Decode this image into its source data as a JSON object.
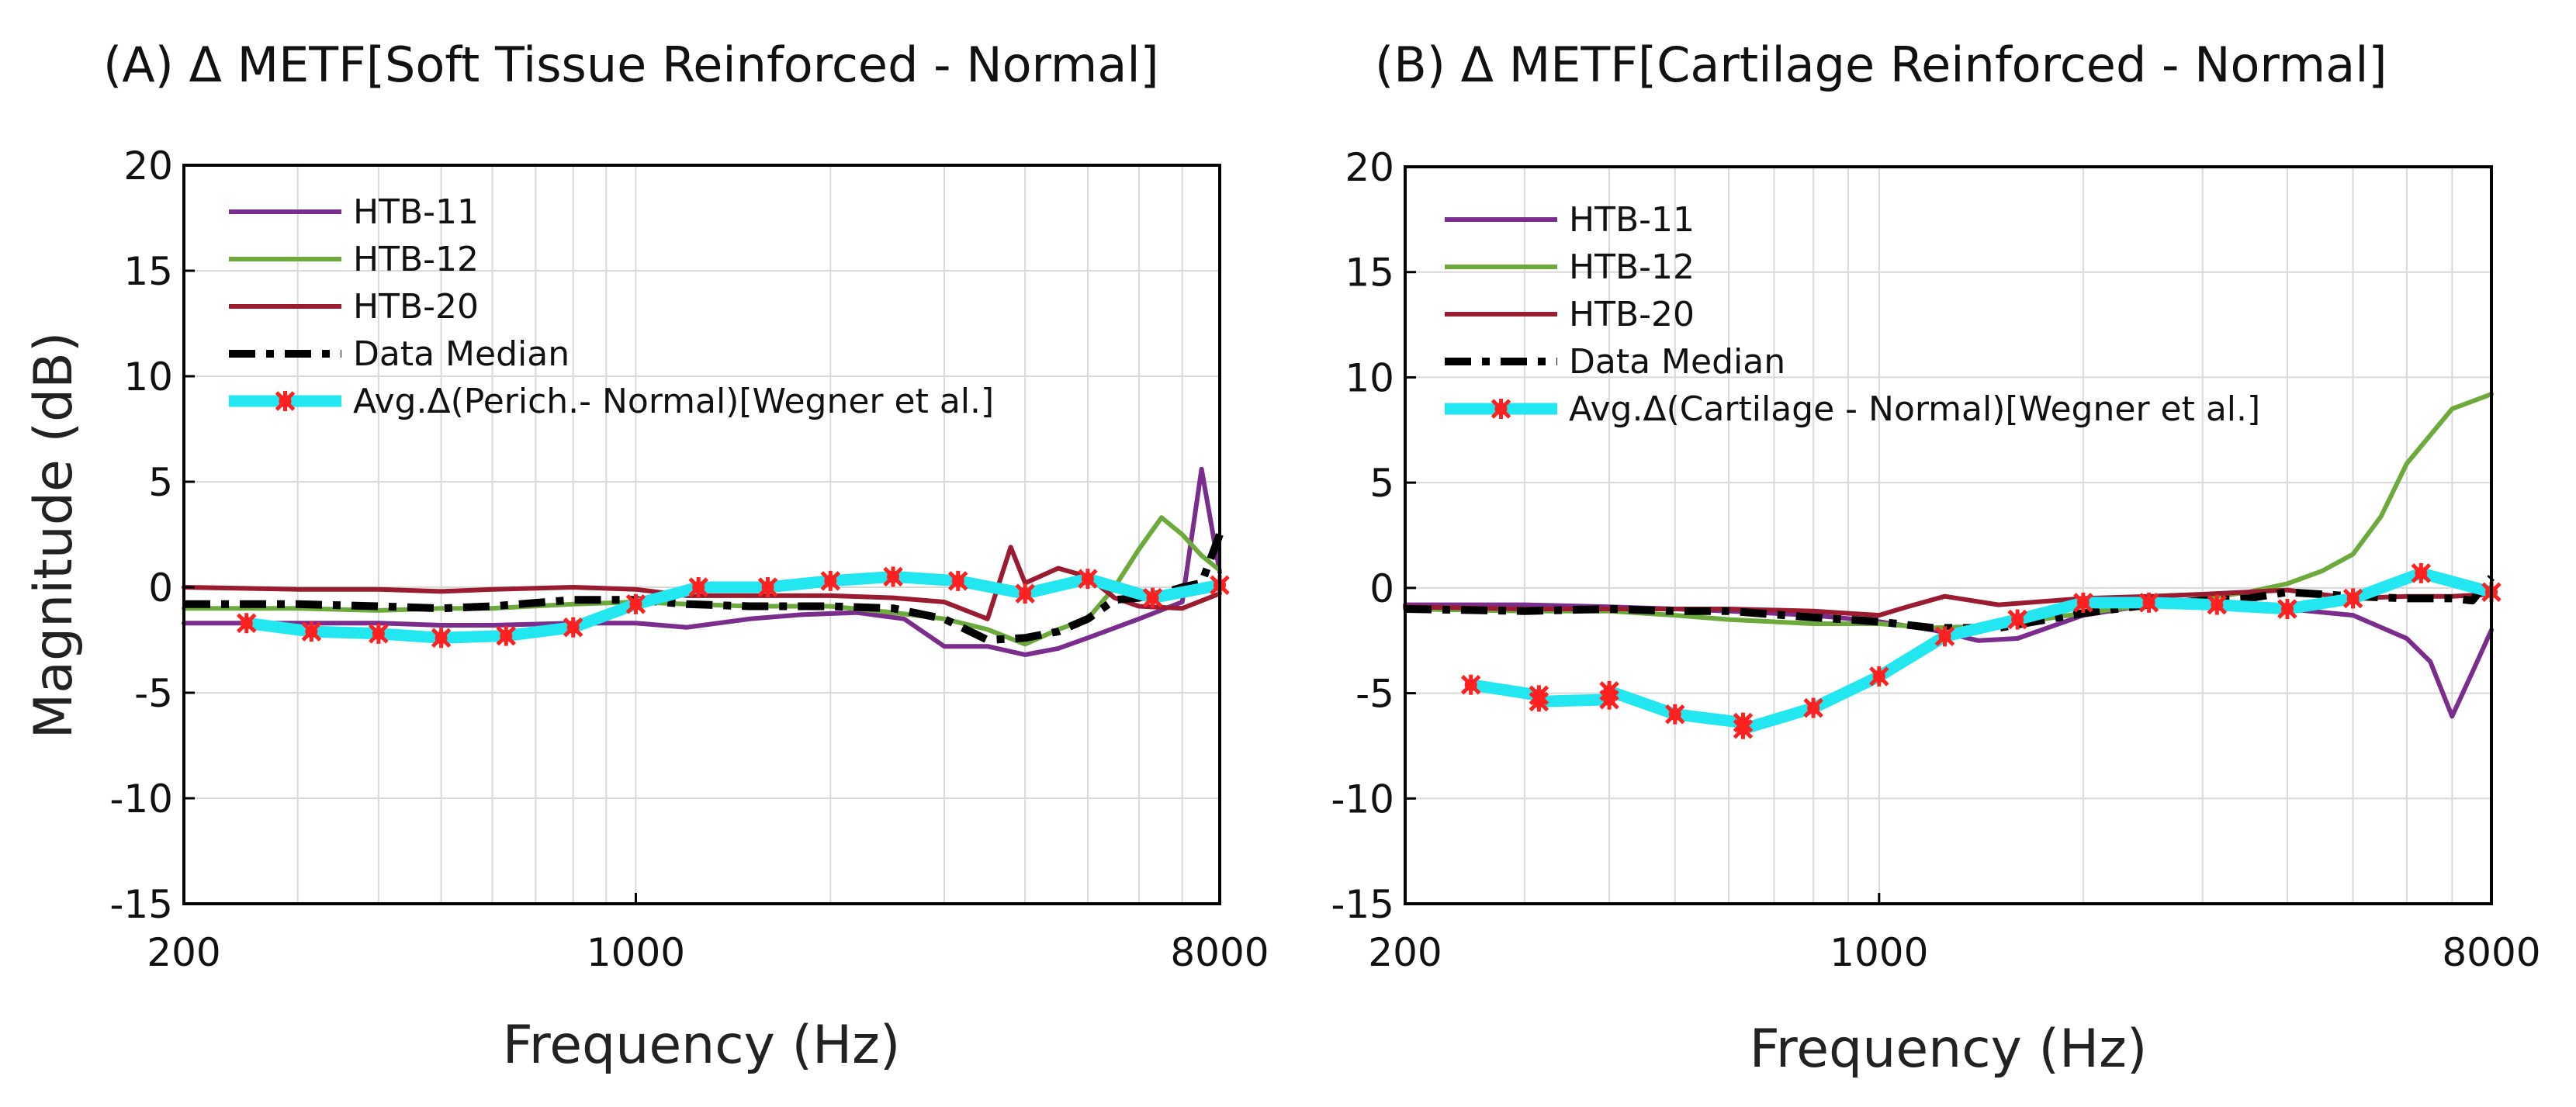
{
  "colors": {
    "purple": "#7B2D8E",
    "green": "#6DAA3C",
    "darkred": "#9B1B30",
    "black": "#000000",
    "cyan": "#22E6F0",
    "marker": "#FF2020",
    "grid": "#d9d9d9"
  },
  "ylabel": "Magnitude (dB)",
  "chart_data": [
    {
      "type": "line",
      "title": "(A) Δ METF[Soft Tissue Reinforced - Normal]",
      "xlabel": "Frequency (Hz)",
      "ylabel": "Magnitude (dB)",
      "xscale": "log",
      "xlim": [
        200,
        8000
      ],
      "ylim": [
        -15,
        20
      ],
      "xticks": [
        200,
        1000,
        8000
      ],
      "xtick_labels": [
        "200",
        "1000",
        "8000"
      ],
      "yticks": [
        -15,
        -10,
        -5,
        0,
        5,
        10,
        15,
        20
      ],
      "ytick_labels": [
        "-15",
        "-10",
        "-5",
        "0",
        "5",
        "10",
        "15",
        "20"
      ],
      "grid": true,
      "legend_position": "top-left",
      "series": [
        {
          "name": "HTB-11",
          "color": "purple",
          "style": "solid",
          "x": [
            200,
            300,
            400,
            500,
            600,
            800,
            1000,
            1200,
            1500,
            1800,
            2200,
            2600,
            3000,
            3500,
            4000,
            4500,
            5000,
            6000,
            7000,
            7500,
            8000
          ],
          "y": [
            -1.7,
            -1.7,
            -1.7,
            -1.8,
            -1.8,
            -1.7,
            -1.7,
            -1.9,
            -1.5,
            -1.3,
            -1.2,
            -1.5,
            -2.8,
            -2.8,
            -3.2,
            -2.9,
            -2.4,
            -1.5,
            -0.7,
            5.6,
            0.7
          ]
        },
        {
          "name": "HTB-12",
          "color": "green",
          "style": "solid",
          "x": [
            200,
            300,
            400,
            500,
            600,
            800,
            1000,
            1200,
            1500,
            2000,
            2500,
            3000,
            3500,
            4000,
            4500,
            5000,
            5500,
            6000,
            6500,
            7000,
            7500,
            8000
          ],
          "y": [
            -1.0,
            -1.0,
            -1.1,
            -1.0,
            -1.0,
            -0.8,
            -0.7,
            -0.8,
            -0.9,
            -0.9,
            -1.2,
            -1.5,
            -2.0,
            -2.7,
            -2.0,
            -1.5,
            0.0,
            1.8,
            3.3,
            2.5,
            1.5,
            0.8
          ]
        },
        {
          "name": "HTB-20",
          "color": "darkred",
          "style": "solid",
          "x": [
            200,
            300,
            400,
            500,
            600,
            800,
            1000,
            1200,
            1500,
            2000,
            2500,
            3000,
            3500,
            3800,
            4000,
            4500,
            5000,
            5500,
            6000,
            7000,
            8000
          ],
          "y": [
            0.0,
            -0.1,
            -0.1,
            -0.2,
            -0.1,
            0.0,
            -0.1,
            -0.4,
            -0.4,
            -0.4,
            -0.5,
            -0.7,
            -1.5,
            1.9,
            0.2,
            0.9,
            0.5,
            -0.5,
            -0.9,
            -1.0,
            -0.3
          ]
        },
        {
          "name": "Data Median",
          "color": "black",
          "style": "dash-dot",
          "x": [
            200,
            300,
            400,
            500,
            600,
            800,
            1000,
            1200,
            1500,
            2000,
            2500,
            3000,
            3500,
            4000,
            4500,
            5000,
            5500,
            6000,
            6500,
            7000,
            7500,
            8000
          ],
          "y": [
            -0.8,
            -0.8,
            -0.9,
            -1.0,
            -0.9,
            -0.6,
            -0.6,
            -0.8,
            -0.9,
            -0.9,
            -1.0,
            -1.5,
            -2.5,
            -2.4,
            -2.1,
            -1.5,
            -0.6,
            -0.5,
            -0.3,
            0.0,
            0.2,
            2.5
          ]
        },
        {
          "name": "Avg.Δ(Perich.- Normal)[Wegner et al.]",
          "color": "cyan",
          "style": "solid-markers",
          "x": [
            250,
            315,
            400,
            500,
            630,
            800,
            1000,
            1250,
            1600,
            2000,
            2500,
            3150,
            4000,
            5000,
            6300,
            8000
          ],
          "y": [
            -1.7,
            -2.1,
            -2.2,
            -2.4,
            -2.3,
            -1.9,
            -0.8,
            0.0,
            0.0,
            0.3,
            0.5,
            0.3,
            -0.3,
            0.4,
            -0.5,
            0.1
          ]
        }
      ]
    },
    {
      "type": "line",
      "title": "(B) Δ METF[Cartilage Reinforced - Normal]",
      "xlabel": "Frequency (Hz)",
      "ylabel": "",
      "xscale": "log",
      "xlim": [
        200,
        8000
      ],
      "ylim": [
        -15,
        20
      ],
      "xticks": [
        200,
        1000,
        8000
      ],
      "xtick_labels": [
        "200",
        "1000",
        "8000"
      ],
      "yticks": [
        -15,
        -10,
        -5,
        0,
        5,
        10,
        15,
        20
      ],
      "ytick_labels": [
        "-15",
        "-10",
        "-5",
        "0",
        "5",
        "10",
        "15",
        "20"
      ],
      "grid": true,
      "legend_position": "top-left",
      "series": [
        {
          "name": "HTB-11",
          "color": "purple",
          "style": "solid",
          "x": [
            200,
            300,
            400,
            500,
            600,
            800,
            1000,
            1200,
            1400,
            1600,
            2000,
            2500,
            3000,
            4000,
            5000,
            6000,
            6500,
            7000,
            7500,
            8000
          ],
          "y": [
            -0.8,
            -0.8,
            -0.9,
            -1.0,
            -1.1,
            -1.3,
            -1.6,
            -2.0,
            -2.5,
            -2.4,
            -1.3,
            -0.8,
            -0.7,
            -1.0,
            -1.3,
            -2.4,
            -3.5,
            -6.1,
            -4.0,
            -2.0
          ]
        },
        {
          "name": "HTB-12",
          "color": "green",
          "style": "solid",
          "x": [
            200,
            300,
            400,
            500,
            600,
            800,
            1000,
            1200,
            1500,
            2000,
            2500,
            3000,
            3500,
            4000,
            4500,
            5000,
            5500,
            6000,
            7000,
            8000
          ],
          "y": [
            -1.0,
            -1.1,
            -1.1,
            -1.3,
            -1.5,
            -1.7,
            -1.7,
            -1.9,
            -1.8,
            -1.2,
            -0.8,
            -0.5,
            -0.2,
            0.2,
            0.8,
            1.6,
            3.4,
            5.9,
            8.5,
            9.2
          ]
        },
        {
          "name": "HTB-20",
          "color": "darkred",
          "style": "solid",
          "x": [
            200,
            300,
            400,
            500,
            600,
            800,
            1000,
            1100,
            1250,
            1500,
            2000,
            2500,
            3000,
            4000,
            5000,
            6000,
            7000,
            8000
          ],
          "y": [
            -0.9,
            -1.0,
            -1.0,
            -1.0,
            -1.0,
            -1.1,
            -1.3,
            -0.9,
            -0.4,
            -0.8,
            -0.5,
            -0.4,
            -0.3,
            -0.1,
            -0.5,
            -0.4,
            -0.4,
            -0.3
          ]
        },
        {
          "name": "Data Median",
          "color": "black",
          "style": "dash-dot",
          "x": [
            200,
            300,
            400,
            500,
            600,
            800,
            1000,
            1200,
            1500,
            2000,
            2500,
            3000,
            3500,
            4000,
            5000,
            6000,
            7000,
            7500,
            8000
          ],
          "y": [
            -1.0,
            -1.1,
            -1.0,
            -1.1,
            -1.1,
            -1.4,
            -1.6,
            -1.9,
            -1.9,
            -1.2,
            -0.8,
            -0.6,
            -0.5,
            -0.2,
            -0.4,
            -0.5,
            -0.5,
            -0.6,
            0.5
          ]
        },
        {
          "name": "Avg.Δ(Cartilage - Normal)[Wegner et al.]",
          "color": "cyan",
          "style": "solid-markers",
          "x": [
            250,
            315,
            315,
            400,
            400,
            500,
            630,
            630,
            800,
            1000,
            1250,
            1600,
            2000,
            2500,
            3150,
            4000,
            5000,
            6300,
            8000
          ],
          "y": [
            -4.6,
            -5.1,
            -5.4,
            -5.3,
            -4.9,
            -6.0,
            -6.4,
            -6.7,
            -5.7,
            -4.2,
            -2.3,
            -1.5,
            -0.7,
            -0.7,
            -0.8,
            -1.0,
            -0.5,
            0.7,
            -0.2
          ]
        }
      ]
    }
  ]
}
